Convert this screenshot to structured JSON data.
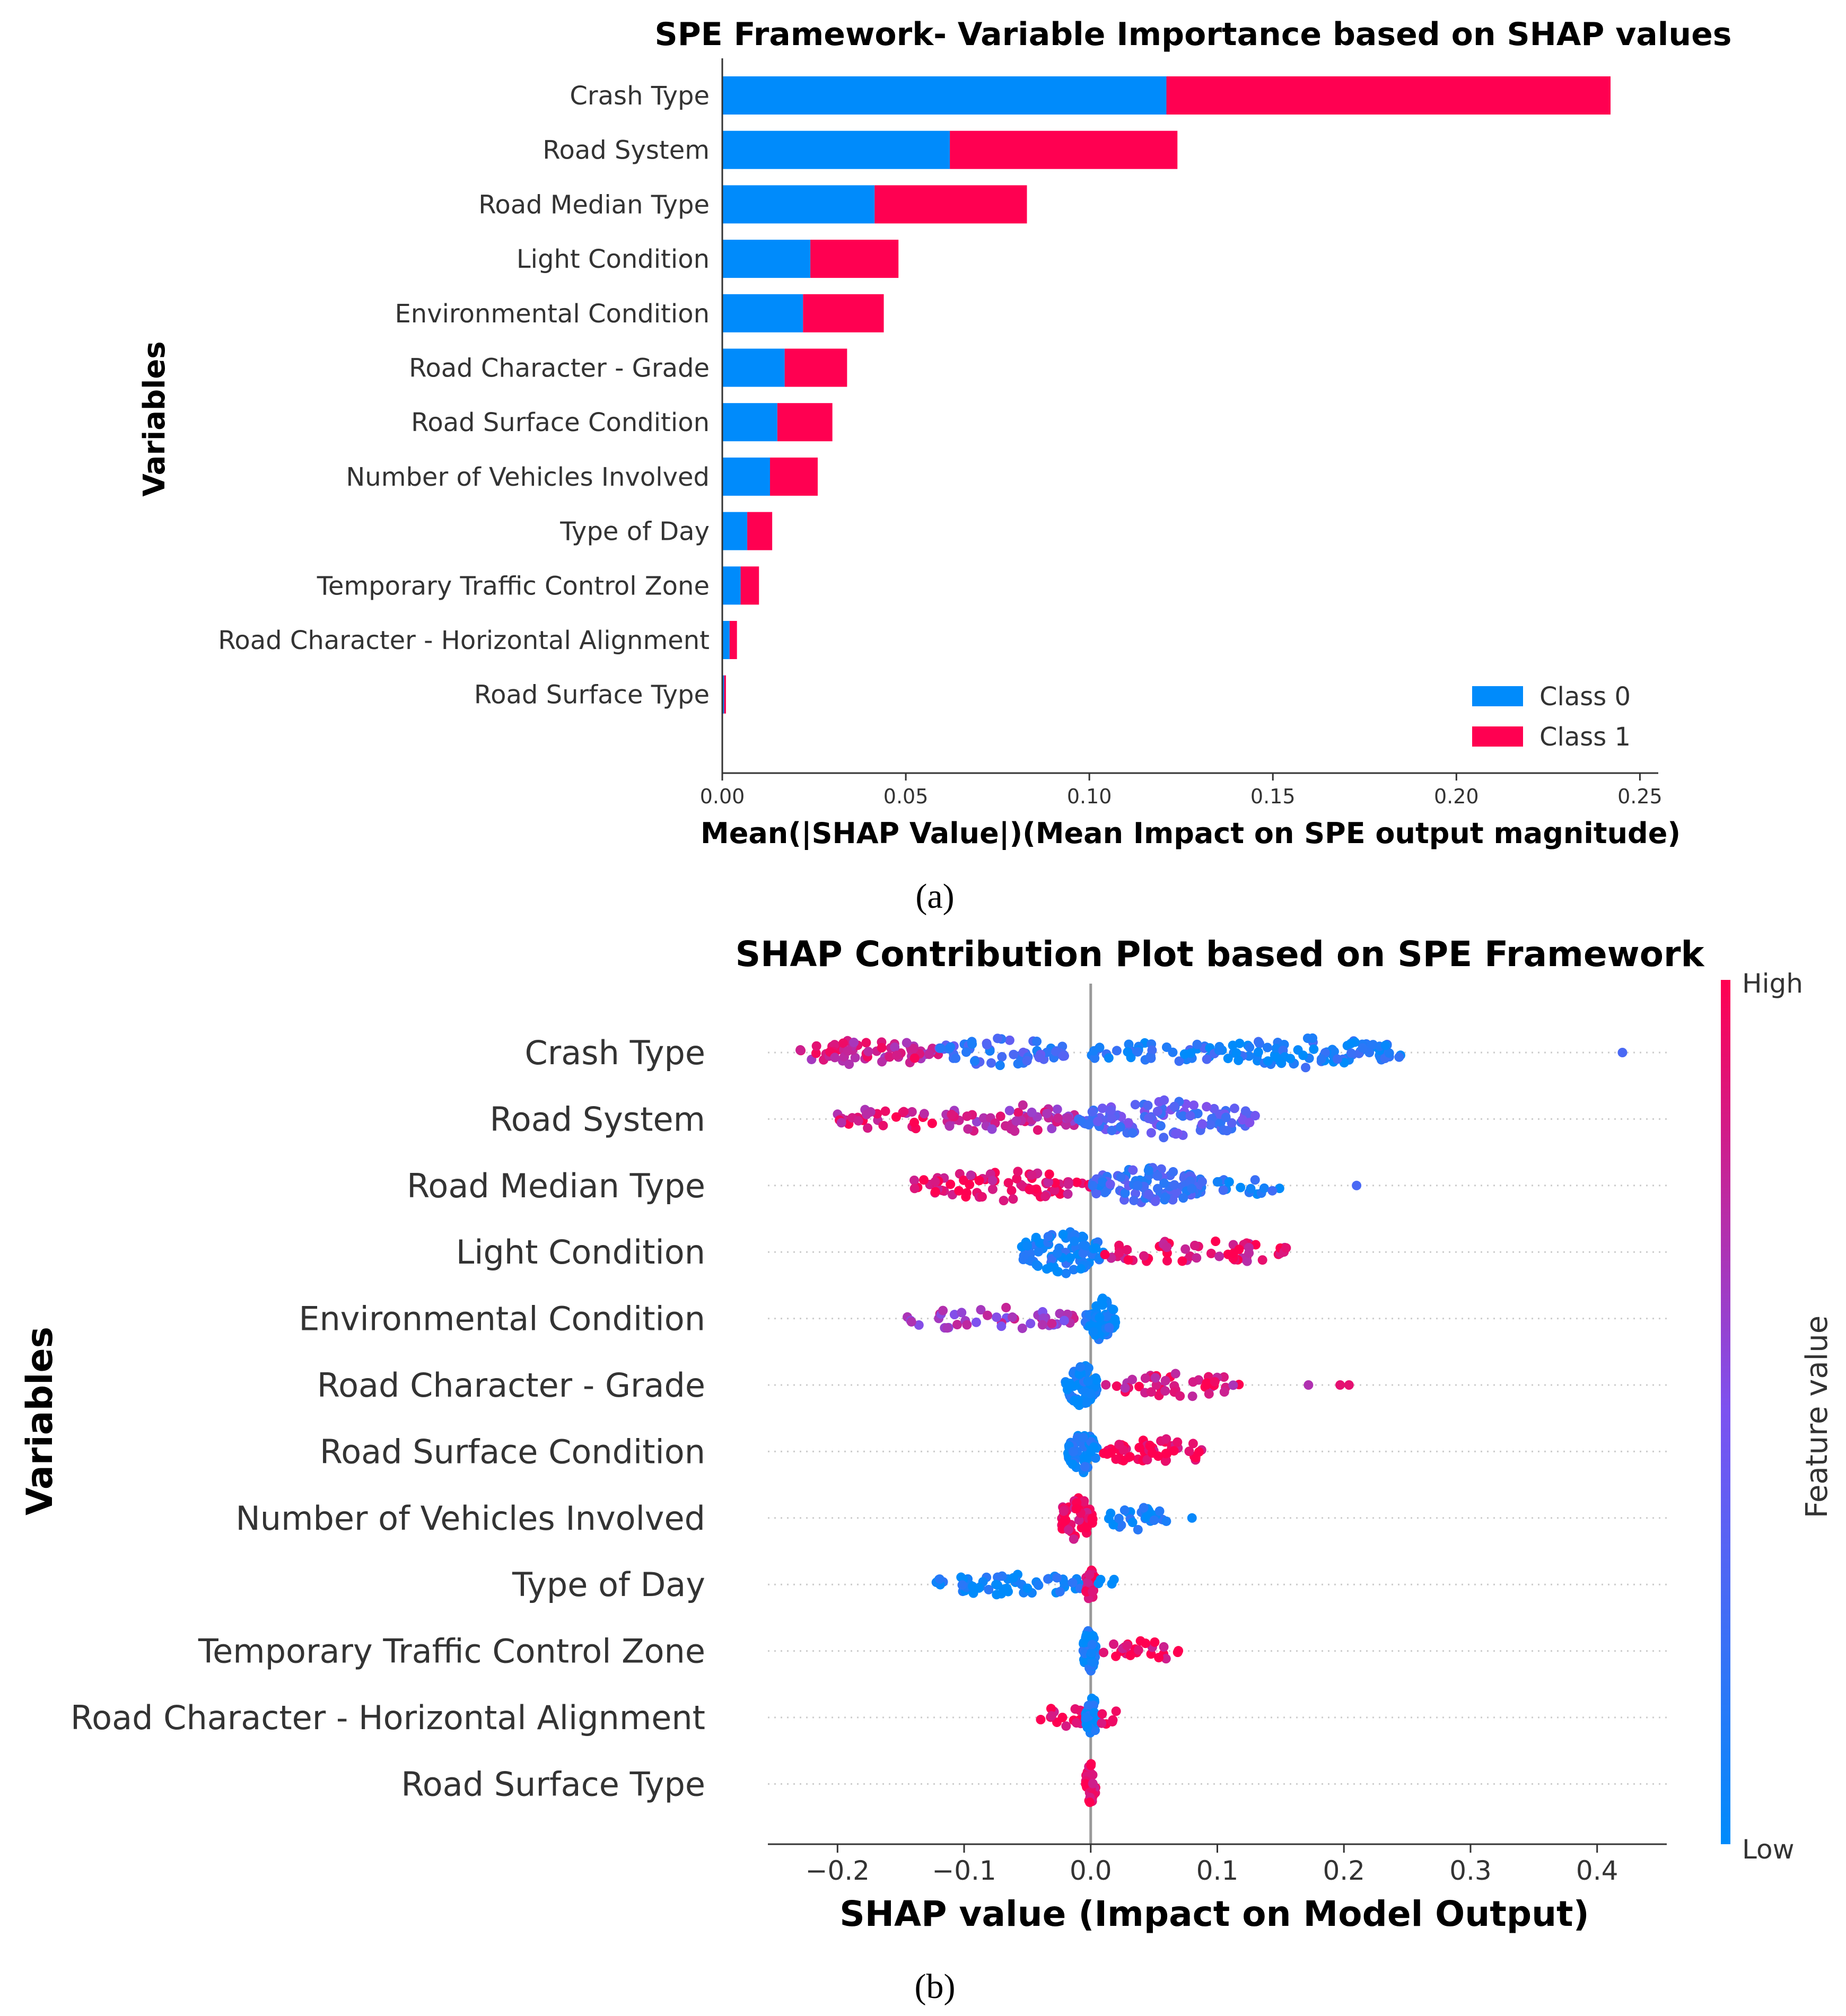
{
  "colors": {
    "class0": "#008bfb",
    "class1": "#ff0051",
    "low": "#008bfb",
    "high": "#ff0051",
    "grid": "#cccccc",
    "zero_line": "#999999"
  },
  "chart_data": [
    {
      "type": "bar",
      "stacked": true,
      "orientation": "horizontal",
      "title": "SPE Framework- Variable Importance based on SHAP values",
      "xlabel": "Mean(|SHAP Value|)(Mean Impact on SPE output magnitude)",
      "ylabel": "Variables",
      "xlim": [
        0,
        0.255
      ],
      "xticks": [
        "0.00",
        "0.05",
        "0.10",
        "0.15",
        "0.20",
        "0.25"
      ],
      "categories": [
        "Crash Type",
        "Road System",
        "Road Median Type",
        "Light Condition",
        "Environmental Condition",
        "Road Character - Grade",
        "Road Surface Condition",
        "Number of Vehicles Involved",
        "Type of Day",
        "Temporary Traffic Control Zone",
        "Road Character - Horizontal Alignment",
        "Road Surface Type"
      ],
      "series": [
        {
          "name": "Class 0",
          "values": [
            0.121,
            0.062,
            0.0415,
            0.024,
            0.022,
            0.017,
            0.015,
            0.013,
            0.0068,
            0.005,
            0.002,
            0.0005
          ]
        },
        {
          "name": "Class 1",
          "values": [
            0.121,
            0.062,
            0.0415,
            0.024,
            0.022,
            0.017,
            0.015,
            0.013,
            0.0068,
            0.005,
            0.002,
            0.0005
          ]
        }
      ],
      "legend": "bottom-right",
      "panel_label": "(a)"
    },
    {
      "type": "scatter",
      "subtype": "beeswarm",
      "title": "SHAP Contribution Plot based on SPE Framework",
      "xlabel": "SHAP value (Impact on Model Output)",
      "ylabel": "Variables",
      "xlim": [
        -0.255,
        0.455
      ],
      "xticks": [
        "−0.2",
        "−0.1",
        "0.0",
        "0.1",
        "0.2",
        "0.3",
        "0.4"
      ],
      "colorbar": {
        "label": "Feature value",
        "high": "High",
        "low": "Low"
      },
      "categories": [
        "Crash Type",
        "Road System",
        "Road Median Type",
        "Light Condition",
        "Environmental Condition",
        "Road Character - Grade",
        "Road Surface Condition",
        "Number of Vehicles Involved",
        "Type of Day",
        "Temporary Traffic Control Zone",
        "Road Character - Horizontal Alignment",
        "Road Surface Type"
      ],
      "features": [
        {
          "name": "Crash Type",
          "clusters": [
            {
              "min": -0.23,
              "max": -0.12,
              "n": 70,
              "c": 0.8,
              "s": 0.5
            },
            {
              "min": -0.12,
              "max": -0.02,
              "n": 60,
              "c": 0.25,
              "s": 0.6
            },
            {
              "min": 0.0,
              "max": 0.1,
              "n": 40,
              "c": 0.15,
              "s": 0.4
            },
            {
              "min": 0.1,
              "max": 0.245,
              "n": 90,
              "c": 0.1,
              "s": 0.6
            }
          ],
          "points": [
            {
              "x": 0.42,
              "c": 0.3
            }
          ]
        },
        {
          "name": "Road System",
          "clusters": [
            {
              "min": -0.2,
              "max": -0.12,
              "n": 30,
              "c": 0.85,
              "s": 0.5
            },
            {
              "min": -0.12,
              "max": -0.01,
              "n": 60,
              "c": 0.75,
              "s": 0.6
            },
            {
              "min": -0.01,
              "max": 0.13,
              "n": 110,
              "c": 0.35,
              "s": 0.8
            }
          ],
          "points": []
        },
        {
          "name": "Road Median Type",
          "clusters": [
            {
              "min": -0.14,
              "max": 0.0,
              "n": 80,
              "c": 0.92,
              "s": 0.6
            },
            {
              "min": 0.0,
              "max": 0.09,
              "n": 100,
              "c": 0.25,
              "s": 0.8
            },
            {
              "min": 0.1,
              "max": 0.155,
              "n": 15,
              "c": 0.1,
              "s": 0.3
            }
          ],
          "points": [
            {
              "x": 0.21,
              "c": 0.3
            }
          ]
        },
        {
          "name": "Light Condition",
          "clusters": [
            {
              "min": -0.055,
              "max": 0.01,
              "n": 90,
              "c": 0.05,
              "s": 1.0
            },
            {
              "min": 0.01,
              "max": 0.155,
              "n": 55,
              "c": 0.9,
              "s": 0.45
            }
          ],
          "points": []
        },
        {
          "name": "Environmental Condition",
          "clusters": [
            {
              "min": -0.155,
              "max": -0.01,
              "n": 45,
              "c": 0.65,
              "s": 0.4
            },
            {
              "min": -0.005,
              "max": 0.02,
              "n": 50,
              "c": 0.02,
              "s": 1.0
            }
          ],
          "points": []
        },
        {
          "name": "Road Character - Grade",
          "clusters": [
            {
              "min": -0.02,
              "max": 0.005,
              "n": 60,
              "c": 0.03,
              "s": 1.0
            },
            {
              "min": 0.01,
              "max": 0.12,
              "n": 45,
              "c": 0.85,
              "s": 0.45
            }
          ],
          "points": [
            {
              "x": 0.172,
              "c": 0.7
            },
            {
              "x": 0.197,
              "c": 0.9
            },
            {
              "x": 0.204,
              "c": 0.9
            }
          ]
        },
        {
          "name": "Road Surface Condition",
          "clusters": [
            {
              "min": -0.018,
              "max": 0.005,
              "n": 50,
              "c": 0.03,
              "s": 1.0
            },
            {
              "min": 0.01,
              "max": 0.092,
              "n": 55,
              "c": 0.97,
              "s": 0.5
            }
          ],
          "points": []
        },
        {
          "name": "Number of Vehicles Involved",
          "clusters": [
            {
              "min": -0.025,
              "max": 0.002,
              "n": 55,
              "c": 0.97,
              "s": 1.0
            },
            {
              "min": 0.012,
              "max": 0.06,
              "n": 30,
              "c": 0.03,
              "s": 0.4
            }
          ],
          "points": [
            {
              "x": 0.08,
              "c": 0.03
            }
          ]
        },
        {
          "name": "Type of Day",
          "clusters": [
            {
              "min": -0.125,
              "max": -0.005,
              "n": 55,
              "c": 0.03,
              "s": 0.35
            },
            {
              "min": -0.004,
              "max": 0.004,
              "n": 30,
              "c": 0.97,
              "s": 1.0
            },
            {
              "min": 0.005,
              "max": 0.02,
              "n": 4,
              "c": 0.03,
              "s": 0.2
            }
          ],
          "points": []
        },
        {
          "name": "Temporary Traffic Control Zone",
          "clusters": [
            {
              "min": -0.006,
              "max": 0.004,
              "n": 45,
              "c": 0.03,
              "s": 1.0
            },
            {
              "min": 0.01,
              "max": 0.072,
              "n": 25,
              "c": 0.97,
              "s": 0.4
            }
          ],
          "points": []
        },
        {
          "name": "Road Character - Horizontal Alignment",
          "clusters": [
            {
              "min": -0.04,
              "max": -0.005,
              "n": 18,
              "c": 0.97,
              "s": 0.4
            },
            {
              "min": -0.004,
              "max": 0.006,
              "n": 40,
              "c": 0.03,
              "s": 1.0
            },
            {
              "min": 0.008,
              "max": 0.022,
              "n": 6,
              "c": 0.97,
              "s": 0.3
            }
          ],
          "points": []
        },
        {
          "name": "Road Surface Type",
          "clusters": [
            {
              "min": -0.004,
              "max": 0.004,
              "n": 30,
              "c": 0.97,
              "s": 1.0
            }
          ],
          "points": []
        }
      ],
      "panel_label": "(b)"
    }
  ]
}
